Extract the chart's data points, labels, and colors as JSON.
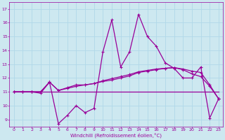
{
  "xlabel": "Windchill (Refroidissement éolien,°C)",
  "xlim": [
    -0.5,
    23.5
  ],
  "ylim": [
    8.5,
    17.5
  ],
  "yticks": [
    9,
    10,
    11,
    12,
    13,
    14,
    15,
    16,
    17
  ],
  "xticks": [
    0,
    1,
    2,
    3,
    4,
    5,
    6,
    7,
    8,
    9,
    10,
    11,
    12,
    13,
    14,
    15,
    16,
    17,
    18,
    19,
    20,
    21,
    22,
    23
  ],
  "bg_color": "#cde8f0",
  "line_color": "#990099",
  "grid_color": "#b0d8e8",
  "line1_x": [
    0,
    1,
    2,
    3,
    4,
    5,
    6,
    7,
    8,
    9,
    10,
    11,
    12,
    13,
    14,
    15,
    16,
    17,
    18,
    19,
    20,
    21,
    22,
    23
  ],
  "line1_y": [
    11,
    11,
    11,
    11,
    11.7,
    8.7,
    9.3,
    10.0,
    9.5,
    9.8,
    13.9,
    16.2,
    12.8,
    13.9,
    16.6,
    15.0,
    14.3,
    13.1,
    12.7,
    12.0,
    12.0,
    12.8,
    9.1,
    10.5
  ],
  "line2_x": [
    0,
    1,
    2,
    3,
    4,
    5,
    6,
    7,
    8,
    9,
    10,
    11,
    12,
    13,
    14,
    15,
    16,
    17,
    18,
    19,
    20,
    21,
    22,
    23
  ],
  "line2_y": [
    11,
    11,
    11,
    10.9,
    11.7,
    11.1,
    11.3,
    11.5,
    11.5,
    11.6,
    11.8,
    11.95,
    12.1,
    12.25,
    12.45,
    12.55,
    12.65,
    12.7,
    12.75,
    12.65,
    12.5,
    12.4,
    11.5,
    10.5
  ],
  "line3_x": [
    0,
    23
  ],
  "line3_y": [
    11,
    11
  ],
  "line4_x": [
    0,
    1,
    2,
    3,
    4,
    5,
    6,
    7,
    8,
    9,
    10,
    11,
    12,
    13,
    14,
    15,
    16,
    17,
    18,
    19,
    20,
    21,
    22,
    23
  ],
  "line4_y": [
    11,
    11,
    11,
    11,
    11.7,
    11.1,
    11.25,
    11.4,
    11.5,
    11.6,
    11.75,
    11.85,
    12.0,
    12.15,
    12.4,
    12.5,
    12.6,
    12.7,
    12.75,
    12.6,
    12.3,
    12.1,
    11.4,
    10.5
  ]
}
